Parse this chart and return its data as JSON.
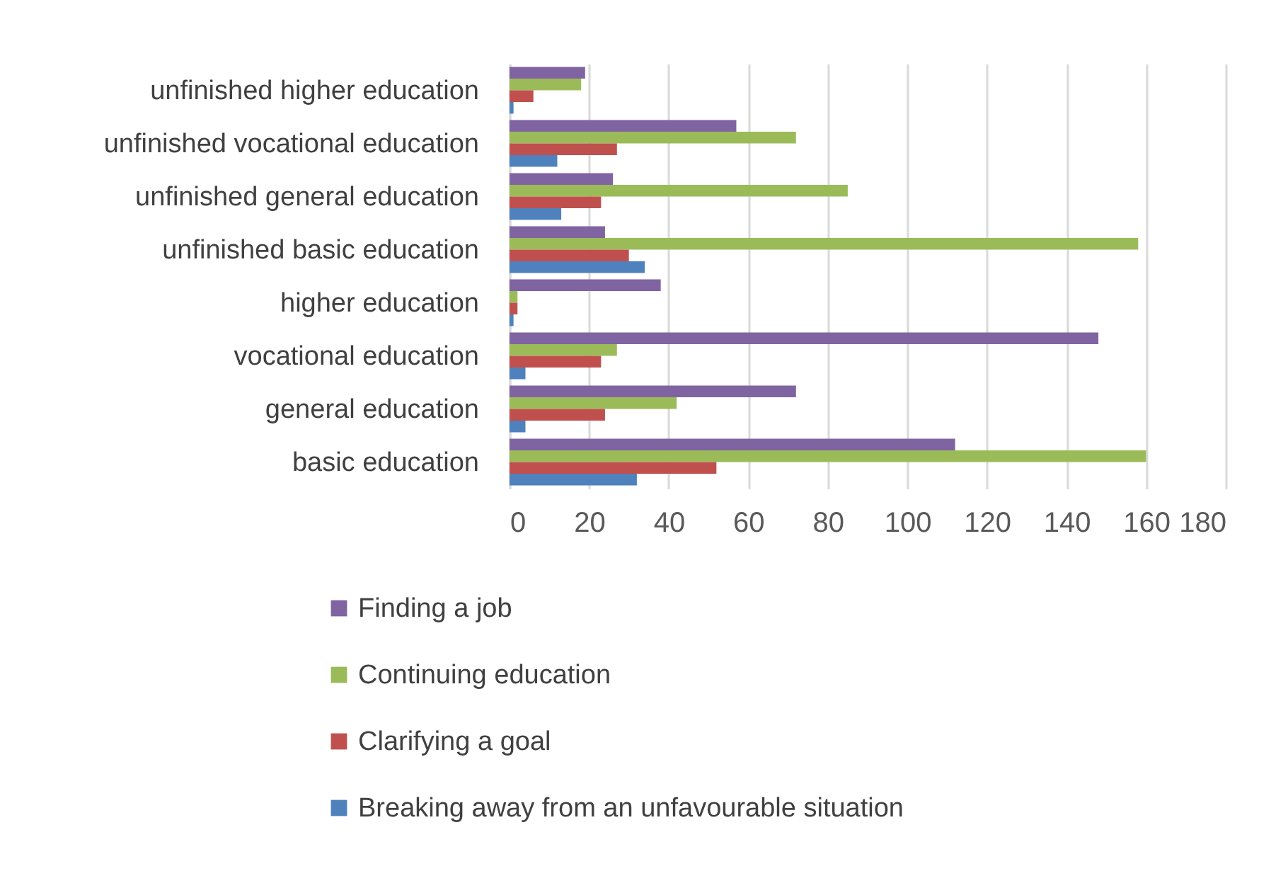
{
  "chart_data": {
    "type": "bar",
    "orientation": "horizontal",
    "categories": [
      "unfinished higher education",
      "unfinished vocational education",
      "unfinished general education",
      "unfinished basic education",
      "higher education",
      "vocational education",
      "general education",
      "basic education"
    ],
    "series": [
      {
        "name": "Finding a job",
        "color": "#8064a2",
        "values": [
          19,
          57,
          26,
          24,
          38,
          148,
          72,
          112
        ]
      },
      {
        "name": "Continuing education",
        "color": "#9bbb59",
        "values": [
          18,
          72,
          85,
          158,
          2,
          27,
          42,
          160
        ]
      },
      {
        "name": "Clarifying a goal",
        "color": "#c0504d",
        "values": [
          6,
          27,
          23,
          30,
          2,
          23,
          24,
          52
        ]
      },
      {
        "name": "Breaking away from an unfavourable situation",
        "color": "#4f81bd",
        "values": [
          1,
          12,
          13,
          34,
          1,
          4,
          4,
          32
        ]
      }
    ],
    "xlim": [
      0,
      180
    ],
    "xticks": [
      0,
      20,
      40,
      60,
      80,
      100,
      120,
      140,
      160,
      180
    ],
    "grid": "x",
    "legend": "bottom"
  }
}
